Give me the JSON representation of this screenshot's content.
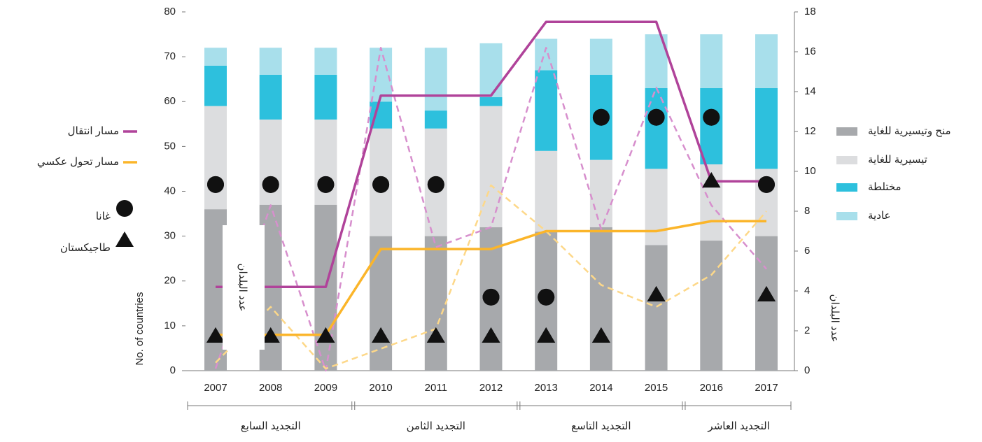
{
  "chart_data": {
    "type": "bar",
    "stacked": true,
    "categories": [
      "2007",
      "2008",
      "2009",
      "2010",
      "2011",
      "2012",
      "2013",
      "2014",
      "2015",
      "2016",
      "2017"
    ],
    "ylabel": "No. of countries",
    "y2label": "عدد البلدان",
    "ylim": [
      0,
      80
    ],
    "yticks": [
      0,
      10,
      20,
      30,
      40,
      50,
      60,
      70,
      80
    ],
    "y2lim": [
      0,
      18
    ],
    "y2ticks": [
      0,
      2,
      4,
      6,
      8,
      10,
      12,
      14,
      16,
      18
    ],
    "series": [
      {
        "name": "منح وتيسيرية للغاية",
        "type": "bar",
        "color": "#a7a9ac",
        "values": [
          36,
          37,
          37,
          30,
          30,
          32,
          31,
          32,
          28,
          29,
          30
        ]
      },
      {
        "name": "تيسيرية للغاية",
        "type": "bar",
        "color": "#dcdddf",
        "values": [
          23,
          19,
          19,
          24,
          24,
          27,
          18,
          15,
          17,
          17,
          15
        ]
      },
      {
        "name": "مختلطة",
        "type": "bar",
        "color": "#2dc0dd",
        "values": [
          9,
          10,
          10,
          6,
          4,
          2,
          18,
          19,
          18,
          17,
          18
        ]
      },
      {
        "name": "عادية",
        "type": "bar",
        "color": "#a8dfeb",
        "values": [
          4,
          6,
          6,
          12,
          14,
          12,
          7,
          8,
          12,
          12,
          12
        ]
      },
      {
        "type": "line",
        "dashed": true,
        "axis": "y2",
        "color": "#d78fcd",
        "values": [
          0.1,
          8.3,
          0,
          16.2,
          6.2,
          7.2,
          16.2,
          7.1,
          14.2,
          8.3,
          5.1
        ]
      },
      {
        "type": "line",
        "dashed": true,
        "axis": "y2",
        "color": "#fdd889",
        "values": [
          0.4,
          3.2,
          0.1,
          1.1,
          2.1,
          9.3,
          7.0,
          4.3,
          3.2,
          4.8,
          8.0
        ]
      },
      {
        "name": "مسار انتقال",
        "type": "line",
        "axis": "y2",
        "color": "#b0439a",
        "values": [
          4.2,
          4.2,
          4.2,
          13.8,
          13.8,
          13.8,
          17.5,
          17.5,
          17.5,
          9.5,
          9.5
        ]
      },
      {
        "name": "مسار تحول عكسي",
        "type": "line",
        "axis": "y2",
        "color": "#fbb52a",
        "values": [
          1.8,
          1.8,
          1.8,
          6.1,
          6.1,
          6.1,
          7.0,
          7.0,
          7.0,
          7.5,
          7.5
        ]
      },
      {
        "name": "غانا",
        "type": "scatter",
        "marker": "circle",
        "color": "#111",
        "values": [
          41.5,
          41.5,
          41.5,
          41.5,
          41.5,
          16.4,
          16.4,
          56.5,
          56.5,
          56.5,
          41.5
        ]
      },
      {
        "name": "طاجيكستان",
        "type": "scatter",
        "marker": "triangle",
        "color": "#111",
        "values": [
          7.8,
          7.8,
          7.8,
          7.8,
          7.8,
          7.8,
          7.8,
          7.8,
          17,
          42.4,
          17
        ]
      }
    ],
    "groups": [
      {
        "label": "التجديد السابع",
        "from": "2007",
        "to": "2009"
      },
      {
        "label": "التجديد الثامن",
        "from": "2010",
        "to": "2012"
      },
      {
        "label": "التجديد التاسع",
        "from": "2013",
        "to": "2015"
      },
      {
        "label": "التجديد العاشر",
        "from": "2016",
        "to": "2017"
      }
    ],
    "annotation": "عدد البلدان"
  }
}
